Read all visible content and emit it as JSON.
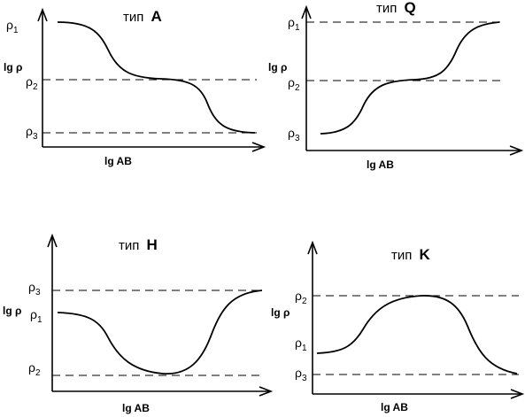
{
  "panels": [
    {
      "id": "A",
      "title_prefix": "тип",
      "title_letter": "A",
      "y_axis_label": "lg ρ",
      "x_axis_label": "lg AB",
      "levels": [
        {
          "base": "ρ",
          "sub": "1"
        },
        {
          "base": "ρ",
          "sub": "2"
        },
        {
          "base": "ρ",
          "sub": "3"
        }
      ]
    },
    {
      "id": "Q",
      "title_prefix": "тип",
      "title_letter": "Q",
      "y_axis_label": "lg ρ",
      "x_axis_label": "lg AB",
      "levels": [
        {
          "base": "ρ",
          "sub": "1"
        },
        {
          "base": "ρ",
          "sub": "2"
        },
        {
          "base": "ρ",
          "sub": "3"
        }
      ]
    },
    {
      "id": "H",
      "title_prefix": "тип",
      "title_letter": "H",
      "y_axis_label": "lg ρ",
      "x_axis_label": "lg AB",
      "levels": [
        {
          "base": "ρ",
          "sub": "3"
        },
        {
          "base": "ρ",
          "sub": "1"
        },
        {
          "base": "ρ",
          "sub": "2"
        }
      ]
    },
    {
      "id": "K",
      "title_prefix": "тип",
      "title_letter": "K",
      "y_axis_label": "lg ρ",
      "x_axis_label": "lg AB",
      "levels": [
        {
          "base": "ρ",
          "sub": "2"
        },
        {
          "base": "ρ",
          "sub": "1"
        },
        {
          "base": "ρ",
          "sub": "3"
        }
      ]
    }
  ]
}
